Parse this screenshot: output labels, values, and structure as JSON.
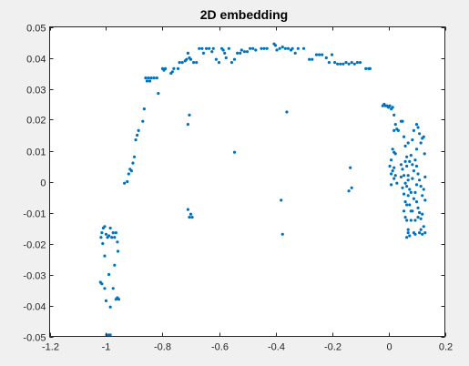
{
  "chart_data": {
    "type": "scatter",
    "title": "2D embedding",
    "xlabel": "",
    "ylabel": "",
    "xlim": [
      -1.2,
      0.2
    ],
    "ylim": [
      -0.05,
      0.05
    ],
    "xticks": [
      -1.2,
      -1,
      -0.8,
      -0.6,
      -0.4,
      -0.2,
      0,
      0.2
    ],
    "xtick_labels": [
      "-1.2",
      "-1",
      "-0.8",
      "-0.6",
      "-0.4",
      "-0.2",
      "0",
      "0.2"
    ],
    "yticks": [
      -0.05,
      -0.04,
      -0.03,
      -0.02,
      -0.01,
      0,
      0.01,
      0.02,
      0.03,
      0.04,
      0.05
    ],
    "ytick_labels": [
      "-0.05",
      "-0.04",
      "-0.03",
      "-0.02",
      "-0.01",
      "0",
      "0.01",
      "0.02",
      "0.03",
      "0.04",
      "0.05"
    ],
    "grid": false,
    "legend": "none",
    "marker_color": "#0072BD",
    "axes_background": "#ffffff",
    "figure_background": "#f0f0f0",
    "series": [
      {
        "points": [
          [
            -1.018,
            -0.018
          ],
          [
            -1.015,
            -0.0165
          ],
          [
            -1.01,
            -0.015
          ],
          [
            -1.005,
            -0.0145
          ],
          [
            -1.0,
            -0.017
          ],
          [
            -0.995,
            -0.018
          ],
          [
            -0.99,
            -0.0175
          ],
          [
            -0.985,
            -0.015
          ],
          [
            -0.98,
            -0.018
          ],
          [
            -0.975,
            -0.0165
          ],
          [
            -0.97,
            -0.018
          ],
          [
            -0.965,
            -0.0165
          ],
          [
            -0.96,
            -0.0195
          ],
          [
            -0.958,
            -0.0225
          ],
          [
            -1.012,
            -0.02
          ],
          [
            -1.005,
            -0.024
          ],
          [
            -1.02,
            -0.0325
          ],
          [
            -1.015,
            -0.033
          ],
          [
            -1.005,
            -0.0345
          ],
          [
            -1.0,
            -0.0385
          ],
          [
            -0.99,
            -0.03
          ],
          [
            -0.985,
            -0.0405
          ],
          [
            -0.975,
            -0.0345
          ],
          [
            -0.965,
            -0.038
          ],
          [
            -0.96,
            -0.0375
          ],
          [
            -0.955,
            -0.038
          ],
          [
            -0.97,
            -0.027
          ],
          [
            -0.998,
            -0.0495
          ],
          [
            -0.99,
            -0.0495
          ],
          [
            -0.985,
            -0.0495
          ],
          [
            -0.935,
            -0.0005
          ],
          [
            -0.925,
            0.0
          ],
          [
            -0.92,
            0.0025
          ],
          [
            -0.915,
            0.004
          ],
          [
            -0.91,
            0.0035
          ],
          [
            -0.905,
            0.006
          ],
          [
            -0.9,
            0.008
          ],
          [
            -0.895,
            0.0135
          ],
          [
            -0.89,
            0.015
          ],
          [
            -0.885,
            0.0165
          ],
          [
            -0.87,
            0.0195
          ],
          [
            -0.865,
            0.0235
          ],
          [
            -0.86,
            0.0335
          ],
          [
            -0.855,
            0.0325
          ],
          [
            -0.85,
            0.0335
          ],
          [
            -0.845,
            0.0325
          ],
          [
            -0.84,
            0.0335
          ],
          [
            -0.83,
            0.0335
          ],
          [
            -0.82,
            0.0335
          ],
          [
            -0.815,
            0.0285
          ],
          [
            -0.8,
            0.0365
          ],
          [
            -0.795,
            0.036
          ],
          [
            -0.79,
            0.0365
          ],
          [
            -0.77,
            0.035
          ],
          [
            -0.765,
            0.0355
          ],
          [
            -0.76,
            0.0365
          ],
          [
            -0.745,
            0.0365
          ],
          [
            -0.74,
            0.0385
          ],
          [
            -0.73,
            0.0385
          ],
          [
            -0.72,
            0.039
          ],
          [
            -0.715,
            0.0395
          ],
          [
            -0.71,
            0.0415
          ],
          [
            -0.705,
            0.04
          ],
          [
            -0.7,
            0.0395
          ],
          [
            -0.69,
            0.0385
          ],
          [
            -0.68,
            0.0385
          ],
          [
            -0.67,
            0.043
          ],
          [
            -0.66,
            0.043
          ],
          [
            -0.655,
            0.0415
          ],
          [
            -0.645,
            0.043
          ],
          [
            -0.635,
            0.043
          ],
          [
            -0.625,
            0.042
          ],
          [
            -0.62,
            0.043
          ],
          [
            -0.61,
            0.0395
          ],
          [
            -0.6,
            0.0385
          ],
          [
            -0.59,
            0.043
          ],
          [
            -0.585,
            0.0425
          ],
          [
            -0.58,
            0.0415
          ],
          [
            -0.575,
            0.04
          ],
          [
            -0.565,
            0.043
          ],
          [
            -0.555,
            0.0385
          ],
          [
            -0.545,
            0.0395
          ],
          [
            -0.535,
            0.0415
          ],
          [
            -0.525,
            0.0415
          ],
          [
            -0.52,
            0.0425
          ],
          [
            -0.51,
            0.042
          ],
          [
            -0.5,
            0.042
          ],
          [
            -0.49,
            0.043
          ],
          [
            -0.48,
            0.043
          ],
          [
            -0.47,
            0.0425
          ],
          [
            -0.45,
            0.043
          ],
          [
            -0.44,
            0.043
          ],
          [
            -0.43,
            0.043
          ],
          [
            -0.405,
            0.0445
          ],
          [
            -0.4,
            0.044
          ],
          [
            -0.395,
            0.0425
          ],
          [
            -0.385,
            0.043
          ],
          [
            -0.375,
            0.0435
          ],
          [
            -0.365,
            0.043
          ],
          [
            -0.355,
            0.043
          ],
          [
            -0.345,
            0.0425
          ],
          [
            -0.34,
            0.043
          ],
          [
            -0.33,
            0.0415
          ],
          [
            -0.32,
            0.043
          ],
          [
            -0.3,
            0.043
          ],
          [
            -0.28,
            0.0395
          ],
          [
            -0.27,
            0.0395
          ],
          [
            -0.255,
            0.041
          ],
          [
            -0.245,
            0.041
          ],
          [
            -0.235,
            0.041
          ],
          [
            -0.22,
            0.04
          ],
          [
            -0.21,
            0.0385
          ],
          [
            -0.2,
            0.041
          ],
          [
            -0.19,
            0.0385
          ],
          [
            -0.18,
            0.038
          ],
          [
            -0.17,
            0.038
          ],
          [
            -0.16,
            0.038
          ],
          [
            -0.15,
            0.0385
          ],
          [
            -0.14,
            0.038
          ],
          [
            -0.13,
            0.0385
          ],
          [
            -0.12,
            0.038
          ],
          [
            -0.11,
            0.0385
          ],
          [
            -0.1,
            0.0385
          ],
          [
            -0.08,
            0.0365
          ],
          [
            -0.07,
            0.0365
          ],
          [
            -0.065,
            0.0365
          ],
          [
            -0.705,
            0.0215
          ],
          [
            -0.71,
            0.0185
          ],
          [
            -0.71,
            -0.009
          ],
          [
            -0.705,
            -0.0115
          ],
          [
            -0.7,
            -0.0105
          ],
          [
            -0.695,
            -0.0115
          ],
          [
            -0.545,
            0.0095
          ],
          [
            -0.36,
            0.0225
          ],
          [
            -0.38,
            -0.006
          ],
          [
            -0.375,
            -0.017
          ],
          [
            -0.135,
            0.0045
          ],
          [
            -0.14,
            -0.003
          ],
          [
            -0.13,
            -0.002
          ],
          [
            -0.02,
            0.0245
          ],
          [
            -0.015,
            0.025
          ],
          [
            -0.01,
            0.0245
          ],
          [
            -0.005,
            0.0245
          ],
          [
            0.0,
            0.024
          ],
          [
            0.005,
            0.0245
          ],
          [
            0.01,
            0.0235
          ],
          [
            0.015,
            0.024
          ],
          [
            0.02,
            0.0215
          ],
          [
            0.025,
            0.0185
          ],
          [
            0.03,
            0.017
          ],
          [
            0.035,
            0.0165
          ],
          [
            0.02,
            0.0165
          ],
          [
            0.015,
            0.0105
          ],
          [
            0.02,
            0.0095
          ],
          [
            0.01,
            0.007
          ],
          [
            0.005,
            0.005
          ],
          [
            0.01,
            0.0025
          ],
          [
            0.015,
            0.0035
          ],
          [
            0.02,
            0.0045
          ],
          [
            0.01,
            -0.001
          ],
          [
            0.02,
            0.001
          ],
          [
            0.025,
            0.002
          ],
          [
            0.03,
            -0.0005
          ],
          [
            0.025,
            0.009
          ],
          [
            0.045,
            0.0195
          ],
          [
            0.05,
            0.0195
          ],
          [
            0.055,
            0.0145
          ],
          [
            0.06,
            0.0115
          ],
          [
            0.065,
            0.008
          ],
          [
            0.07,
            0.0125
          ],
          [
            0.045,
            0.0055
          ],
          [
            0.05,
            0.004
          ],
          [
            0.055,
            0.002
          ],
          [
            0.06,
            0.0065
          ],
          [
            0.065,
            0.005
          ],
          [
            0.07,
            0.002
          ],
          [
            0.045,
            0.0015
          ],
          [
            0.05,
            -0.002
          ],
          [
            0.055,
            -0.004
          ],
          [
            0.06,
            -0.0065
          ],
          [
            0.065,
            -0.0075
          ],
          [
            0.07,
            -0.0045
          ],
          [
            0.075,
            -0.0025
          ],
          [
            0.055,
            -0.0095
          ],
          [
            0.06,
            -0.0115
          ],
          [
            0.065,
            -0.0125
          ],
          [
            0.07,
            -0.0155
          ],
          [
            0.075,
            -0.0175
          ],
          [
            0.065,
            -0.018
          ],
          [
            0.07,
            -0.0165
          ],
          [
            0.08,
            -0.0125
          ],
          [
            0.085,
            -0.0095
          ],
          [
            0.09,
            -0.0165
          ],
          [
            0.095,
            -0.017
          ],
          [
            0.08,
            -0.0035
          ],
          [
            0.085,
            0.001
          ],
          [
            0.09,
            0.0035
          ],
          [
            0.095,
            0.007
          ],
          [
            0.1,
            0.0105
          ],
          [
            0.085,
            0.0135
          ],
          [
            0.09,
            0.0165
          ],
          [
            0.1,
            0.0185
          ],
          [
            0.105,
            0.0175
          ],
          [
            0.11,
            0.0155
          ],
          [
            0.115,
            0.0125
          ],
          [
            0.12,
            0.014
          ],
          [
            0.125,
            0.0145
          ],
          [
            0.1,
            0.005
          ],
          [
            0.105,
            0.0025
          ],
          [
            0.11,
            0.0005
          ],
          [
            0.115,
            -0.0015
          ],
          [
            0.12,
            -0.0045
          ],
          [
            0.125,
            -0.0025
          ],
          [
            0.1,
            -0.0065
          ],
          [
            0.105,
            -0.0085
          ],
          [
            0.11,
            -0.01
          ],
          [
            0.115,
            -0.012
          ],
          [
            0.12,
            -0.0105
          ],
          [
            0.125,
            -0.0145
          ],
          [
            0.11,
            -0.0165
          ],
          [
            0.115,
            -0.0155
          ],
          [
            0.12,
            -0.017
          ],
          [
            0.13,
            -0.0165
          ],
          [
            0.13,
            0.0015
          ],
          [
            0.13,
            -0.006
          ],
          [
            0.128,
            0.009
          ],
          [
            0.06,
            -0.0005
          ],
          [
            0.065,
            -0.0015
          ],
          [
            0.07,
            0.0005
          ],
          [
            0.075,
            0.0065
          ],
          [
            0.08,
            0.0085
          ],
          [
            0.085,
            0.0055
          ],
          [
            0.075,
            -0.0075
          ],
          [
            0.08,
            -0.0095
          ],
          [
            0.09,
            -0.0055
          ],
          [
            0.095,
            -0.0035
          ],
          [
            0.1,
            -0.001
          ],
          [
            0.105,
            -0.0115
          ],
          [
            0.095,
            -0.0125
          ]
        ]
      }
    ]
  }
}
